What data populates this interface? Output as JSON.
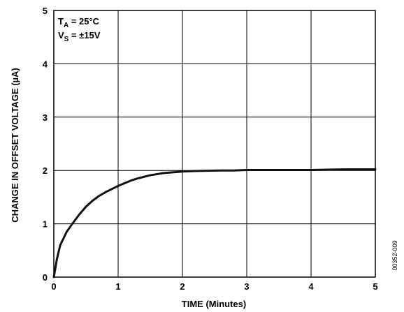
{
  "chart_data": {
    "type": "line",
    "xlabel": "TIME (Minutes)",
    "ylabel": "CHANGE IN OFFSET VOLTAGE (µA)",
    "xlim": [
      0,
      5
    ],
    "ylim": [
      0,
      5
    ],
    "x_ticks": [
      "0",
      "1",
      "2",
      "3",
      "4",
      "5"
    ],
    "y_ticks": [
      "0",
      "1",
      "2",
      "3",
      "4",
      "5"
    ],
    "grid": true,
    "annotations": [
      {
        "main": "T",
        "sub": "A",
        "rest": " = 25°C"
      },
      {
        "main": "V",
        "sub": "S",
        "rest": " = ±15V"
      }
    ],
    "figure_id": "00352-009",
    "series": [
      {
        "x": [
          0,
          0.05,
          0.1,
          0.2,
          0.3,
          0.4,
          0.5,
          0.6,
          0.7,
          0.8,
          0.9,
          1.0,
          1.1,
          1.2,
          1.3,
          1.4,
          1.5,
          1.6,
          1.7,
          1.8,
          1.9,
          2.0,
          2.2,
          2.4,
          2.6,
          2.8,
          3.0,
          3.5,
          4.0,
          4.5,
          5.0
        ],
        "y": [
          0,
          0.35,
          0.6,
          0.85,
          1.02,
          1.18,
          1.32,
          1.43,
          1.52,
          1.59,
          1.65,
          1.71,
          1.76,
          1.81,
          1.85,
          1.88,
          1.91,
          1.93,
          1.95,
          1.96,
          1.97,
          1.98,
          1.99,
          1.995,
          2.0,
          2.0,
          2.01,
          2.01,
          2.01,
          2.02,
          2.02
        ]
      }
    ]
  }
}
